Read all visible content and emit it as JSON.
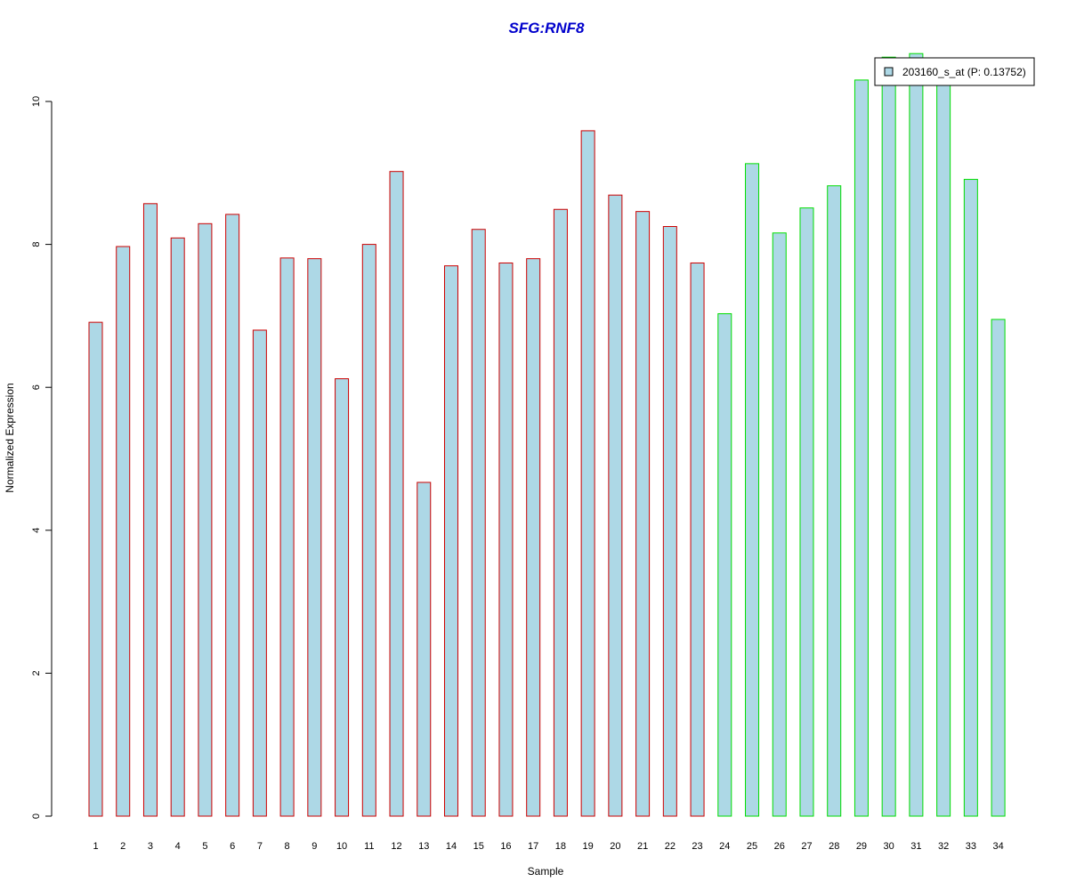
{
  "chart_data": {
    "type": "bar",
    "title": "SFG:RNF8",
    "xlabel": "Sample",
    "ylabel": "Normalized Expression",
    "categories": [
      "1",
      "2",
      "3",
      "4",
      "5",
      "6",
      "7",
      "8",
      "9",
      "10",
      "11",
      "12",
      "13",
      "14",
      "15",
      "16",
      "17",
      "18",
      "19",
      "20",
      "21",
      "22",
      "23",
      "24",
      "25",
      "26",
      "27",
      "28",
      "29",
      "30",
      "31",
      "32",
      "33",
      "34"
    ],
    "series": [
      {
        "name": "203160_s_at (P: 0.13752)",
        "values": [
          6.91,
          7.97,
          8.57,
          8.09,
          8.29,
          8.42,
          6.8,
          7.81,
          7.8,
          6.12,
          8.0,
          9.02,
          4.67,
          7.7,
          8.21,
          7.74,
          7.8,
          8.49,
          9.59,
          8.69,
          8.46,
          8.25,
          7.74,
          7.03,
          9.13,
          8.16,
          8.51,
          8.82,
          10.3,
          10.62,
          10.67,
          10.61,
          8.91,
          6.95
        ]
      }
    ],
    "group_of_sample": [
      1,
      1,
      1,
      1,
      1,
      1,
      1,
      1,
      1,
      1,
      1,
      1,
      1,
      1,
      1,
      1,
      1,
      1,
      1,
      1,
      1,
      1,
      1,
      2,
      2,
      2,
      2,
      2,
      2,
      2,
      2,
      2,
      2,
      2
    ],
    "yticks": [
      0,
      2,
      4,
      6,
      8,
      10
    ],
    "ylim": [
      0,
      10.67
    ],
    "grid": false,
    "legend_position": "top-right",
    "colors": {
      "title": "#0000cc",
      "bar_fill": "#add8e6",
      "group1_border": "#cc0000",
      "group2_border": "#00dd00",
      "axis": "#000000"
    }
  }
}
